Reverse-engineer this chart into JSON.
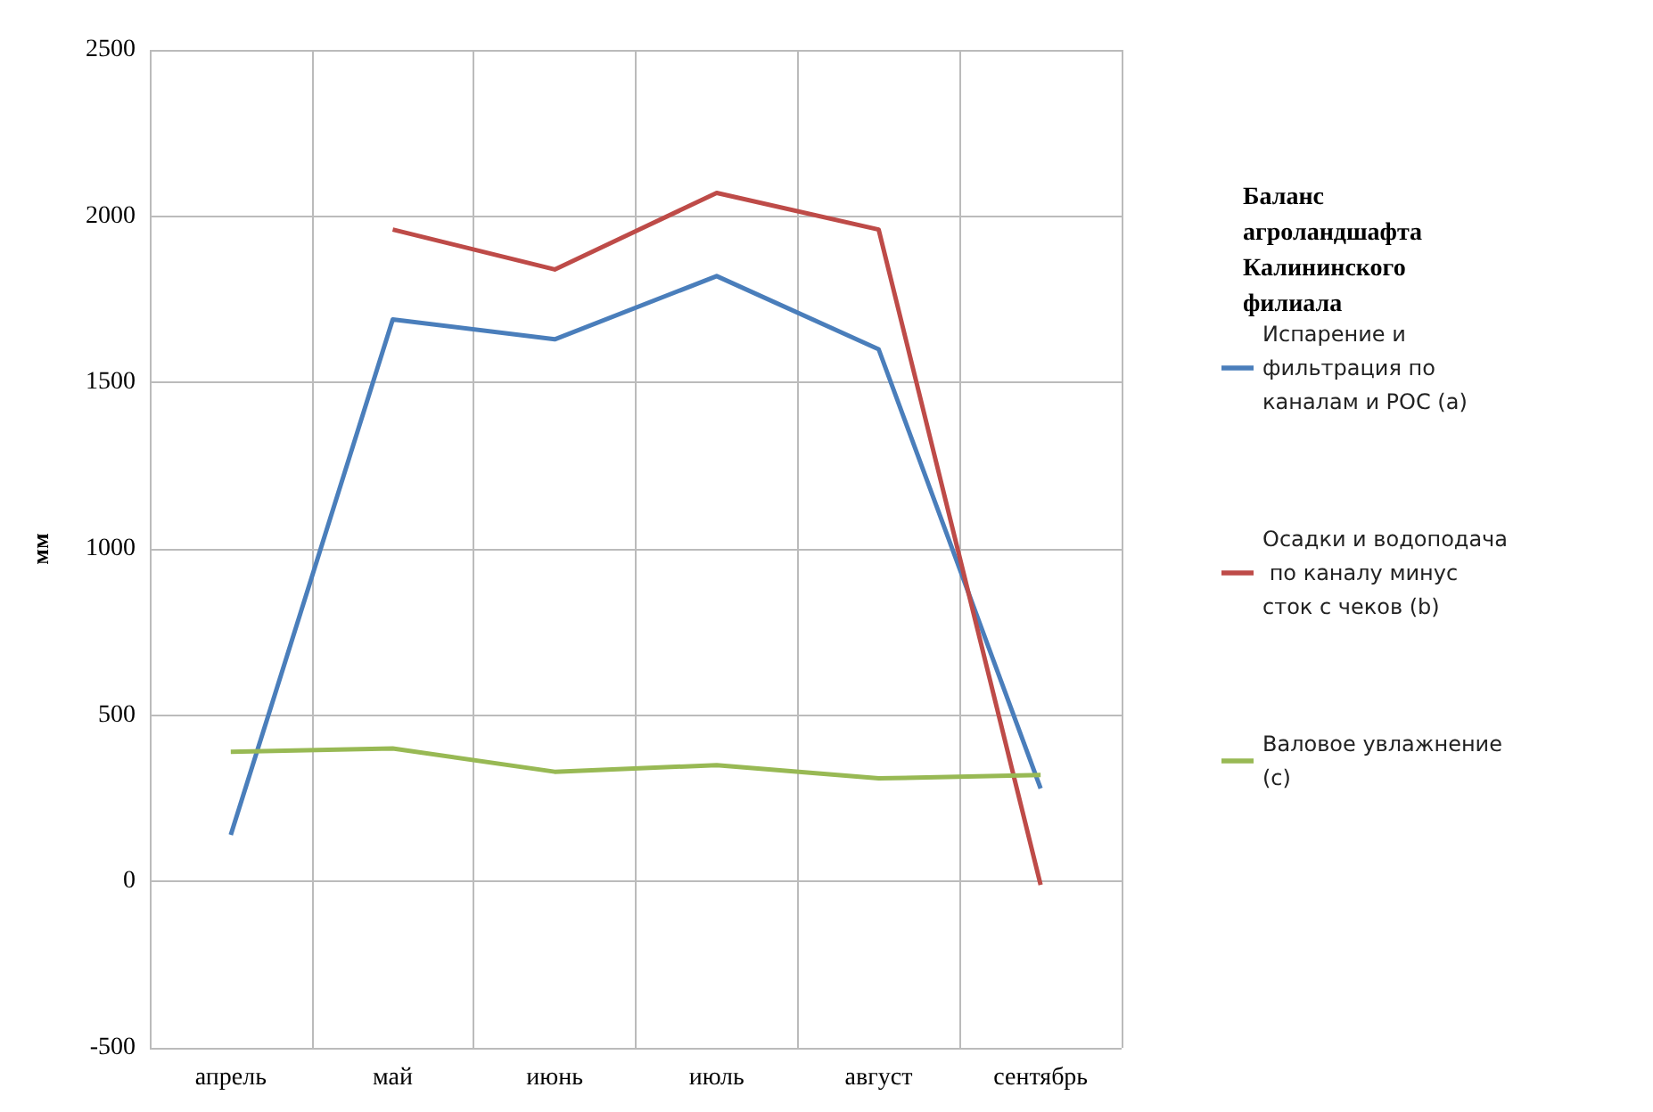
{
  "chart_data": {
    "type": "line",
    "title": "Баланс агроландшафта Калининского филиала",
    "ylabel": "мм",
    "categories": [
      "апрель",
      "май",
      "июнь",
      "июль",
      "август",
      "сентябрь"
    ],
    "series": [
      {
        "name": "Испарение и фильтрация по каналам и РОС (a)",
        "color": "#4a7ebb",
        "values": [
          140,
          1690,
          1630,
          1820,
          1600,
          280
        ]
      },
      {
        "name": "Осадки и водоподача по каналу минус сток с чеков (b)",
        "color": "#be4b48",
        "values": [
          null,
          1960,
          1840,
          2070,
          1960,
          -10
        ]
      },
      {
        "name": "Валовое увлажнение (c)",
        "color": "#98b954",
        "values": [
          390,
          400,
          330,
          350,
          310,
          320
        ]
      }
    ],
    "ylim": [
      -500,
      2500
    ],
    "yticks": [
      -500,
      0,
      500,
      1000,
      1500,
      2000,
      2500
    ],
    "grid": true,
    "legend": "right",
    "marker": "none",
    "line_style": "solid"
  }
}
